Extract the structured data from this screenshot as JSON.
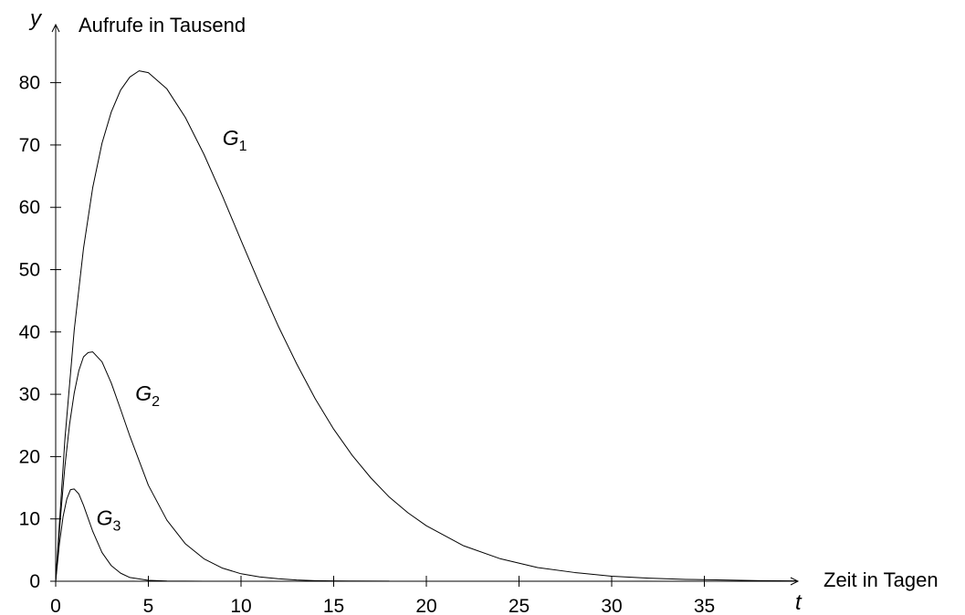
{
  "chart_data": {
    "type": "line",
    "y_axis": {
      "symbol": "y",
      "title": "Aufrufe in Tausend",
      "ticks": [
        0,
        10,
        20,
        30,
        40,
        50,
        60,
        70,
        80
      ],
      "ylim": [
        0,
        85
      ]
    },
    "x_axis": {
      "symbol": "t",
      "title": "Zeit in Tagen",
      "ticks": [
        0,
        5,
        10,
        15,
        20,
        25,
        30,
        35
      ],
      "xlim": [
        0,
        40
      ]
    },
    "grid": false,
    "series": [
      {
        "name": "G",
        "subscript": "1",
        "label_at": [
          9,
          70
        ],
        "points": [
          [
            0,
            0
          ],
          [
            0.5,
            22.9
          ],
          [
            1,
            40.3
          ],
          [
            1.5,
            53.4
          ],
          [
            2,
            63.2
          ],
          [
            2.5,
            70.3
          ],
          [
            3,
            75.3
          ],
          [
            3.5,
            78.8
          ],
          [
            4,
            80.9
          ],
          [
            4.5,
            81.9
          ],
          [
            5,
            81.6
          ],
          [
            6,
            79.0
          ],
          [
            7,
            74.4
          ],
          [
            8,
            68.5
          ],
          [
            9,
            61.8
          ],
          [
            10,
            54.7
          ],
          [
            11,
            47.7
          ],
          [
            12,
            41.0
          ],
          [
            13,
            34.9
          ],
          [
            14,
            29.3
          ],
          [
            15,
            24.4
          ],
          [
            16,
            20.2
          ],
          [
            17,
            16.6
          ],
          [
            18,
            13.5
          ],
          [
            19,
            11.0
          ],
          [
            20,
            8.9
          ],
          [
            22,
            5.7
          ],
          [
            24,
            3.6
          ],
          [
            26,
            2.2
          ],
          [
            28,
            1.4
          ],
          [
            30,
            0.8
          ],
          [
            32,
            0.5
          ],
          [
            34,
            0.3
          ],
          [
            36,
            0.2
          ],
          [
            38,
            0.1
          ],
          [
            40,
            0.05
          ]
        ]
      },
      {
        "name": "G",
        "subscript": "2",
        "label_at": [
          4.3,
          29
        ],
        "points": [
          [
            0,
            0
          ],
          [
            0.25,
            10.0
          ],
          [
            0.5,
            18.5
          ],
          [
            0.75,
            25.2
          ],
          [
            1,
            30.2
          ],
          [
            1.25,
            33.8
          ],
          [
            1.5,
            36.0
          ],
          [
            1.75,
            36.7
          ],
          [
            2,
            36.8
          ],
          [
            2.5,
            35.2
          ],
          [
            3,
            31.8
          ],
          [
            3.5,
            27.6
          ],
          [
            4,
            23.3
          ],
          [
            5,
            15.4
          ],
          [
            6,
            9.8
          ],
          [
            7,
            6.0
          ],
          [
            8,
            3.6
          ],
          [
            9,
            2.1
          ],
          [
            10,
            1.2
          ],
          [
            11,
            0.7
          ],
          [
            12,
            0.4
          ],
          [
            13,
            0.2
          ],
          [
            14,
            0.1
          ],
          [
            15,
            0.06
          ],
          [
            16,
            0.03
          ],
          [
            18,
            0.01
          ]
        ]
      },
      {
        "name": "G",
        "subscript": "3",
        "label_at": [
          2.2,
          9
        ],
        "points": [
          [
            0,
            0
          ],
          [
            0.2,
            6.0
          ],
          [
            0.4,
            10.4
          ],
          [
            0.6,
            13.2
          ],
          [
            0.8,
            14.7
          ],
          [
            1,
            14.8
          ],
          [
            1.25,
            14.0
          ],
          [
            1.5,
            12.2
          ],
          [
            2,
            8.0
          ],
          [
            2.5,
            4.6
          ],
          [
            3,
            2.5
          ],
          [
            3.5,
            1.3
          ],
          [
            4,
            0.6
          ],
          [
            5,
            0.15
          ],
          [
            6,
            0.04
          ],
          [
            7,
            0.01
          ],
          [
            8,
            0
          ]
        ]
      }
    ]
  }
}
